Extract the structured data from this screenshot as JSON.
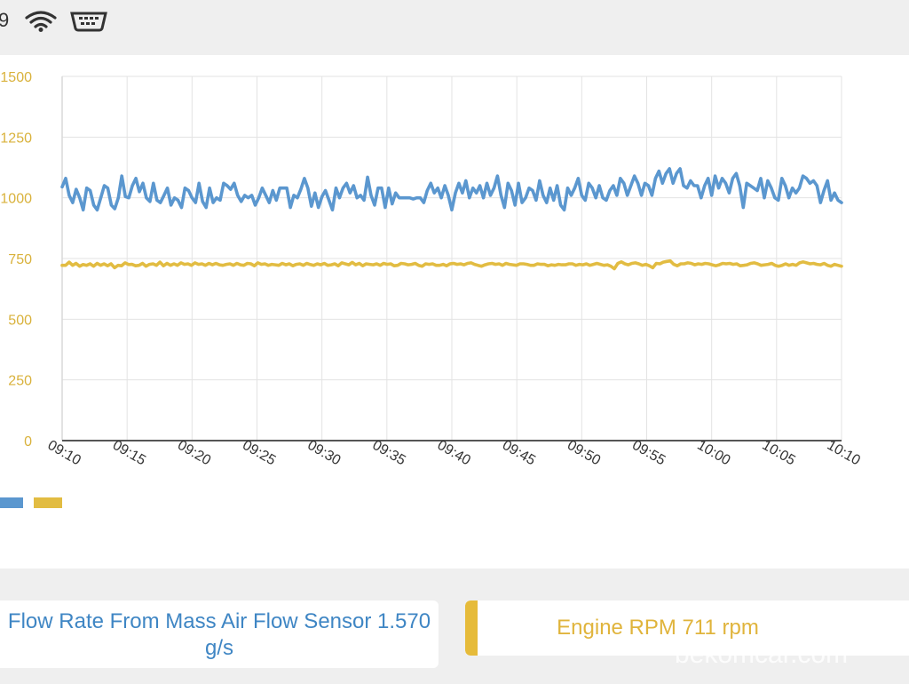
{
  "status_bar": {
    "time_partial": "9",
    "icons": [
      "wifi-icon",
      "obd-adapter-icon"
    ]
  },
  "chart_data": {
    "type": "line",
    "yticks": [
      "1500",
      "1250",
      "1000",
      "750",
      "500",
      "250",
      "0"
    ],
    "ylim": [
      0,
      1500
    ],
    "x_ticks": [
      "09:10",
      "09:15",
      "09:20",
      "09:25",
      "09:30",
      "09:35",
      "09:40",
      "09:45",
      "09:50",
      "09:55",
      "10:00",
      "10:05",
      "10:10"
    ],
    "x_range_minutes": [
      0,
      60
    ],
    "grid": true,
    "colors": {
      "flow": "#5b97cf",
      "rpm": "#e2bc42"
    },
    "series": [
      {
        "values": [
          1045,
          1080,
          1010,
          980,
          1035,
          1000,
          950,
          1040,
          1030,
          970,
          950,
          1000,
          1050,
          1040,
          970,
          955,
          1000,
          1090,
          1005,
          1000,
          1050,
          1080,
          1025,
          1060,
          1000,
          985,
          1060,
          990,
          980,
          1010,
          1040,
          970,
          1000,
          990,
          960,
          1040,
          1030,
          1000,
          980,
          1060,
          985,
          960,
          1040,
          980,
          1000,
          990,
          1060,
          1050,
          1035,
          1060,
          1010,
          985,
          1010,
          1000,
          1010,
          970,
          1000,
          1040,
          1010,
          980,
          1030,
          990,
          1040,
          1040,
          1040,
          960,
          1010,
          1000,
          1035,
          1080,
          1040,
          965,
          1020,
          960,
          1005,
          1030,
          990,
          950,
          1040,
          1000,
          1040,
          1060,
          1020,
          1050,
          1000,
          1010,
          990,
          1085,
          1010,
          970,
          1040,
          1040,
          960,
          1040,
          975,
          1020,
          1000,
          1000,
          1000,
          1000,
          995,
          1000,
          1000,
          980,
          1030,
          1060,
          1020,
          1040,
          1000,
          1050,
          1010,
          950,
          1020,
          1060,
          1020,
          1070,
          1000,
          1040,
          1020,
          1050,
          1000,
          1060,
          1010,
          1040,
          1090,
          1010,
          960,
          1060,
          1030,
          970,
          1060,
          980,
          1000,
          1040,
          1030,
          990,
          1070,
          1010,
          980,
          1040,
          990,
          1050,
          970,
          950,
          1040,
          1010,
          1040,
          1080,
          1010,
          990,
          1060,
          1040,
          1000,
          1050,
          1000,
          990,
          1030,
          1050,
          1010,
          1080,
          1060,
          1010,
          1050,
          1090,
          1060,
          1010,
          1060,
          1050,
          1010,
          1080,
          1110,
          1060,
          1100,
          1120,
          1060,
          1100,
          1120,
          1050,
          1040,
          1070,
          1050,
          1050,
          1000,
          1050,
          1080,
          1010,
          1090,
          1040,
          1080,
          1060,
          1020,
          1080,
          1100,
          1050,
          960,
          1060,
          1050,
          1040,
          1030,
          1080,
          1000,
          1070,
          1040,
          1000,
          990,
          1080,
          1050,
          1000,
          1040,
          1020,
          1040,
          1090,
          1080,
          1060,
          1070,
          1050,
          980,
          1030,
          1070,
          990,
          1020,
          990,
          980
        ]
      },
      {
        "values": [
          722,
          722,
          735,
          722,
          730,
          718,
          725,
          722,
          728,
          718,
          730,
          722,
          728,
          720,
          728,
          712,
          722,
          720,
          732,
          725,
          726,
          720,
          722,
          730,
          718,
          726,
          728,
          722,
          735,
          720,
          730,
          722,
          728,
          722,
          732,
          726,
          728,
          722,
          732,
          726,
          728,
          722,
          730,
          724,
          730,
          724,
          722,
          726,
          728,
          722,
          730,
          724,
          722,
          730,
          728,
          720,
          732,
          726,
          728,
          722,
          726,
          724,
          722,
          730,
          724,
          728,
          720,
          726,
          728,
          722,
          730,
          725,
          722,
          728,
          724,
          730,
          722,
          724,
          728,
          720,
          732,
          728,
          724,
          734,
          724,
          730,
          720,
          728,
          726,
          724,
          728,
          722,
          730,
          726,
          728,
          720,
          722,
          730,
          728,
          724,
          726,
          730,
          722,
          718,
          728,
          726,
          728,
          722,
          722,
          726,
          720,
          728,
          730,
          726,
          728,
          724,
          730,
          732,
          726,
          722,
          718,
          724,
          728,
          730,
          726,
          728,
          722,
          730,
          726,
          724,
          722,
          728,
          728,
          726,
          722,
          722,
          728,
          726,
          726,
          720,
          724,
          722,
          726,
          724,
          724,
          728,
          728,
          722,
          726,
          724,
          728,
          722,
          726,
          730,
          726,
          722,
          724,
          718,
          708,
          730,
          736,
          728,
          724,
          730,
          732,
          728,
          722,
          726,
          720,
          712,
          730,
          728,
          735,
          738,
          740,
          726,
          720,
          728,
          728,
          732,
          730,
          724,
          728,
          726,
          730,
          728,
          724,
          720,
          724,
          730,
          728,
          730,
          726,
          728,
          720,
          722,
          724,
          730,
          732,
          728,
          722,
          724,
          726,
          730,
          722,
          718,
          722,
          728,
          722,
          726,
          722,
          732,
          736,
          732,
          728,
          730,
          726,
          724,
          730,
          722,
          718,
          726,
          722,
          718
        ]
      }
    ]
  },
  "values": {
    "maf": {
      "label": "Flow Rate From Mass Air Flow Sensor 1.570 g/s",
      "color": "#3f86c4"
    },
    "rpm": {
      "label": "Engine RPM 711 rpm",
      "color": "#e0b43c"
    }
  },
  "watermark": "bekomcar.com"
}
